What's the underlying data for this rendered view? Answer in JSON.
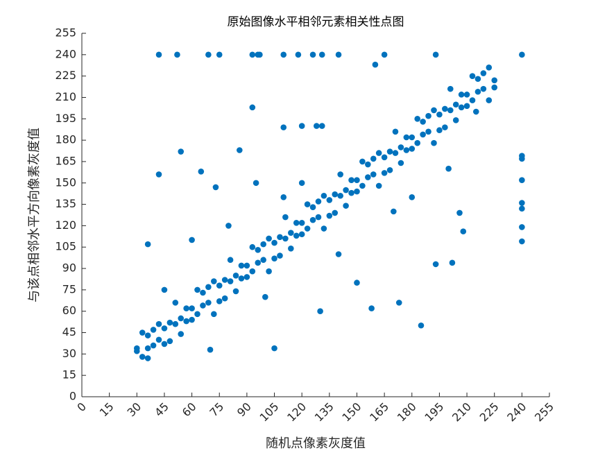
{
  "chart_data": {
    "type": "scatter",
    "title": "原始图像水平相邻元素相关性点图",
    "x_label": "随机点像素灰度值",
    "y_label": "与该点相邻水平方向像素灰度值",
    "color": "#0072bd",
    "xlim": [
      0,
      255
    ],
    "ylim": [
      0,
      255
    ],
    "xticks": [
      0,
      15,
      30,
      45,
      60,
      75,
      90,
      105,
      120,
      135,
      150,
      165,
      180,
      195,
      210,
      225,
      240,
      255
    ],
    "yticks": [
      0,
      15,
      30,
      45,
      60,
      75,
      90,
      105,
      120,
      135,
      150,
      165,
      180,
      195,
      210,
      225,
      240,
      255
    ],
    "x": [
      30,
      33,
      36,
      39,
      42,
      45,
      48,
      51,
      54,
      57,
      60,
      63,
      66,
      69,
      72,
      75,
      78,
      81,
      84,
      87,
      90,
      93,
      96,
      99,
      102,
      105,
      108,
      111,
      114,
      117,
      120,
      123,
      126,
      129,
      132,
      135,
      138,
      141,
      144,
      147,
      150,
      153,
      156,
      159,
      162,
      165,
      168,
      171,
      174,
      177,
      180,
      183,
      186,
      189,
      192,
      195,
      198,
      201,
      204,
      207,
      210,
      213,
      216,
      219,
      222,
      225,
      30,
      33,
      36,
      39,
      42,
      45,
      48,
      51,
      54,
      57,
      60,
      63,
      66,
      69,
      72,
      75,
      78,
      81,
      84,
      87,
      90,
      93,
      96,
      99,
      102,
      105,
      108,
      111,
      114,
      117,
      120,
      123,
      126,
      129,
      132,
      135,
      138,
      141,
      144,
      147,
      150,
      153,
      156,
      159,
      162,
      165,
      168,
      171,
      174,
      177,
      180,
      183,
      186,
      189,
      192,
      195,
      198,
      201,
      204,
      207,
      210,
      213,
      216,
      219,
      222,
      225,
      42,
      52,
      69,
      75,
      93,
      96,
      97,
      110,
      118,
      126,
      131,
      140,
      165,
      193,
      240,
      240,
      240,
      240,
      240,
      240,
      240,
      240,
      93,
      54,
      86,
      110,
      120,
      128,
      131,
      193,
      202,
      185,
      173,
      206,
      208,
      158,
      105,
      36,
      42,
      36,
      160,
      70,
      65,
      73,
      45,
      95,
      180,
      150,
      130,
      100,
      60,
      120,
      140,
      170,
      200,
      215,
      110,
      80
    ],
    "values": [
      32,
      28,
      43,
      36,
      51,
      37,
      52,
      51,
      44,
      62,
      62,
      58,
      73,
      66,
      81,
      67,
      82,
      81,
      74,
      92,
      92,
      88,
      103,
      96,
      111,
      97,
      112,
      111,
      104,
      122,
      122,
      118,
      133,
      126,
      141,
      127,
      142,
      141,
      134,
      152,
      152,
      148,
      163,
      156,
      171,
      157,
      172,
      171,
      164,
      182,
      182,
      178,
      193,
      186,
      201,
      187,
      202,
      201,
      194,
      212,
      212,
      208,
      223,
      216,
      231,
      217,
      34,
      45,
      34,
      47,
      40,
      48,
      39,
      66,
      55,
      53,
      54,
      75,
      64,
      77,
      58,
      78,
      69,
      96,
      85,
      83,
      84,
      105,
      94,
      107,
      88,
      108,
      99,
      126,
      115,
      113,
      114,
      135,
      124,
      137,
      118,
      138,
      129,
      156,
      145,
      143,
      144,
      165,
      154,
      167,
      148,
      168,
      159,
      186,
      175,
      173,
      174,
      195,
      184,
      197,
      178,
      198,
      189,
      216,
      205,
      203,
      204,
      225,
      214,
      227,
      208,
      222,
      240,
      240,
      240,
      240,
      240,
      240,
      240,
      240,
      240,
      240,
      240,
      240,
      240,
      240,
      240,
      169,
      167,
      152,
      136,
      132,
      119,
      109,
      203,
      172,
      173,
      189,
      190,
      190,
      190,
      93,
      94,
      50,
      66,
      129,
      116,
      62,
      34,
      27,
      156,
      107,
      233,
      33,
      158,
      147,
      75,
      150,
      140,
      80,
      60,
      70,
      110,
      150,
      100,
      130,
      160,
      200,
      140,
      120
    ]
  }
}
